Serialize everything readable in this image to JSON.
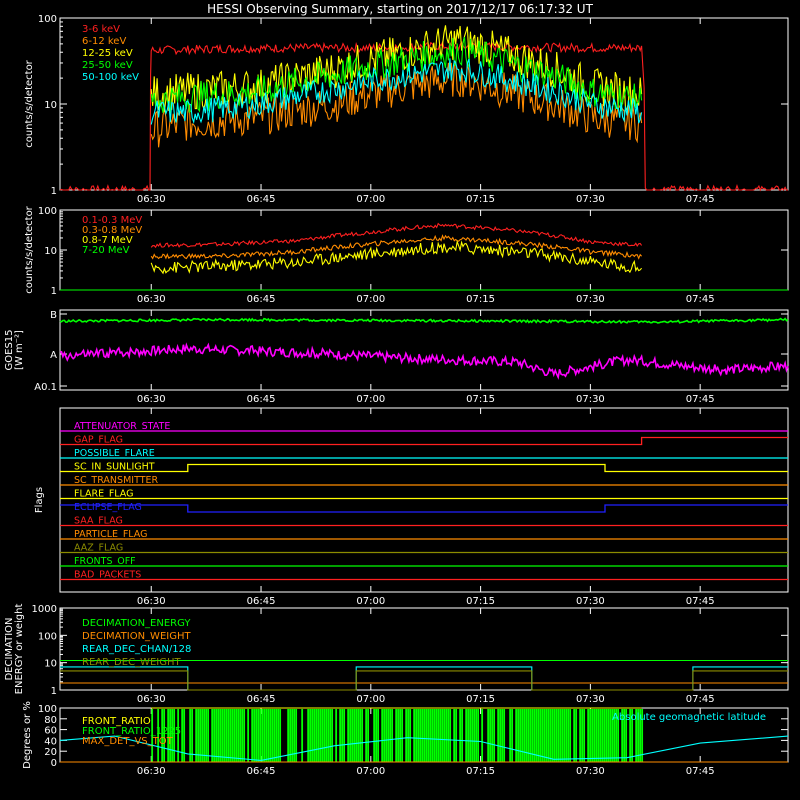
{
  "title": "HESSI Observing Summary, starting on 2017/12/17 06:17:32 UT",
  "time_axis": {
    "start": "06:17:32",
    "end": "07:57:00",
    "tick_labels": [
      "06:30",
      "06:45",
      "07:00",
      "07:15",
      "07:30",
      "07:45"
    ],
    "tick_times": [
      "06:30",
      "06:45",
      "07:00",
      "07:15",
      "07:30",
      "07:45"
    ]
  },
  "chart_data": [
    {
      "type": "line",
      "panel": "countrate-low",
      "ylabel": "counts/s/detector",
      "yscale": "log",
      "ylim": [
        1,
        100
      ],
      "ytick_labels": [
        "1",
        "10",
        "100"
      ],
      "series": [
        {
          "name": "3-6 keV",
          "color": "#ff2020",
          "x": [
            "06:17:32",
            "06:29:50",
            "06:30:00",
            "06:40",
            "06:50",
            "07:00",
            "07:10",
            "07:20",
            "07:30",
            "07:37",
            "07:37:30",
            "07:57"
          ],
          "y": [
            1,
            1,
            42,
            44,
            45,
            45,
            47,
            46,
            45,
            45,
            1,
            1
          ]
        },
        {
          "name": "6-12 keV",
          "color": "#ff8c00",
          "x": [
            "06:30:00",
            "06:35",
            "06:45",
            "06:55",
            "07:05",
            "07:12",
            "07:20",
            "07:30",
            "07:37"
          ],
          "y": [
            5,
            6,
            7,
            10,
            16,
            20,
            13,
            7,
            6
          ]
        },
        {
          "name": "12-25 keV",
          "color": "#ffff00",
          "x": [
            "06:30:00",
            "06:35",
            "06:45",
            "06:55",
            "07:05",
            "07:12",
            "07:20",
            "07:30",
            "07:37"
          ],
          "y": [
            13,
            14,
            16,
            25,
            40,
            55,
            35,
            16,
            13
          ]
        },
        {
          "name": "25-50 keV",
          "color": "#00ff00",
          "x": [
            "06:30:00",
            "06:35",
            "06:45",
            "06:55",
            "07:05",
            "07:12",
            "07:20",
            "07:30",
            "07:37"
          ],
          "y": [
            11,
            12,
            14,
            22,
            33,
            42,
            28,
            14,
            11
          ]
        },
        {
          "name": "50-100 keV",
          "color": "#00ffff",
          "x": [
            "06:30:00",
            "06:35",
            "06:45",
            "06:55",
            "07:05",
            "07:12",
            "07:20",
            "07:30",
            "07:37"
          ],
          "y": [
            8,
            8,
            10,
            15,
            22,
            26,
            18,
            10,
            8
          ]
        }
      ]
    },
    {
      "type": "line",
      "panel": "countrate-high",
      "ylabel": "counts/s/detector",
      "yscale": "log",
      "ylim": [
        1,
        100
      ],
      "ytick_labels": [
        "1",
        "10",
        "100"
      ],
      "series": [
        {
          "name": "0.1-0.3 MeV",
          "color": "#ff2020",
          "x": [
            "06:30:00",
            "06:40",
            "06:50",
            "07:00",
            "07:10",
            "07:20",
            "07:30",
            "07:37"
          ],
          "y": [
            13,
            14,
            17,
            28,
            42,
            30,
            16,
            13
          ]
        },
        {
          "name": "0.3-0.8 MeV",
          "color": "#ff8c00",
          "x": [
            "06:30:00",
            "06:40",
            "06:50",
            "07:00",
            "07:10",
            "07:20",
            "07:30",
            "07:37"
          ],
          "y": [
            7,
            7,
            9,
            14,
            20,
            15,
            9,
            7
          ]
        },
        {
          "name": "0.8-7 MeV",
          "color": "#ffff00",
          "x": [
            "06:30:00",
            "06:40",
            "06:50",
            "07:00",
            "07:10",
            "07:20",
            "07:30",
            "07:37"
          ],
          "y": [
            3.5,
            4,
            5,
            8,
            12,
            9,
            5,
            3.5
          ]
        },
        {
          "name": "7-20 MeV",
          "color": "#00ff00",
          "x": [
            "06:17:32",
            "07:57"
          ],
          "y": [
            1,
            1
          ]
        }
      ]
    },
    {
      "type": "line",
      "panel": "goes",
      "ylabel_lines": [
        "GOES15",
        "[W m⁻²]"
      ],
      "yscale": "log",
      "ytick_labels": [
        "A0.1",
        "A",
        "B"
      ],
      "series": [
        {
          "name": "",
          "color": "#00ff00",
          "x": [
            "06:17:32",
            "06:40",
            "07:00",
            "07:20",
            "07:40",
            "07:57"
          ],
          "y": [
            0.86,
            0.88,
            0.87,
            0.86,
            0.85,
            0.88
          ]
        },
        {
          "name": "",
          "color": "#ff00ff",
          "x": [
            "06:17:32",
            "06:35",
            "06:50",
            "07:05",
            "07:20",
            "07:25",
            "07:35",
            "07:48",
            "07:57"
          ],
          "y": [
            0.42,
            0.52,
            0.47,
            0.4,
            0.35,
            0.2,
            0.38,
            0.25,
            0.3
          ]
        }
      ]
    },
    {
      "type": "line",
      "panel": "flags",
      "ylabel": "Flags",
      "series": [
        {
          "name": "ATTENUATOR_STATE",
          "color": "#ff00ff",
          "x": [
            "06:17:32",
            "07:57"
          ],
          "y": [
            0,
            0
          ]
        },
        {
          "name": "GAP_FLAG",
          "color": "#ff2020",
          "x": [
            "06:17:32",
            "07:37",
            "07:37",
            "07:57"
          ],
          "y": [
            0,
            0,
            1,
            1
          ]
        },
        {
          "name": "POSSIBLE_FLARE",
          "color": "#00ffff",
          "x": [
            "06:17:32",
            "07:57"
          ],
          "y": [
            0,
            0
          ]
        },
        {
          "name": "SC_IN_SUNLIGHT",
          "color": "#ffff00",
          "x": [
            "06:17:32",
            "06:35",
            "06:35",
            "07:32",
            "07:32",
            "07:57"
          ],
          "y": [
            0,
            0,
            1,
            1,
            0,
            0
          ]
        },
        {
          "name": "SC_TRANSMITTER",
          "color": "#ff8c00",
          "x": [
            "06:17:32",
            "07:57"
          ],
          "y": [
            0,
            0
          ]
        },
        {
          "name": "FLARE_FLAG",
          "color": "#ffff00",
          "x": [
            "06:17:32",
            "07:57"
          ],
          "y": [
            0,
            0
          ]
        },
        {
          "name": "ECLIPSE_FLAG",
          "color": "#2020ff",
          "x": [
            "06:17:32",
            "06:35",
            "06:35",
            "07:32",
            "07:32",
            "07:57"
          ],
          "y": [
            1,
            1,
            0,
            0,
            1,
            1
          ]
        },
        {
          "name": "SAA_FLAG",
          "color": "#ff2020",
          "x": [
            "06:17:32",
            "07:57"
          ],
          "y": [
            0,
            0
          ]
        },
        {
          "name": "PARTICLE_FLAG",
          "color": "#ff8c00",
          "x": [
            "06:17:32",
            "07:57"
          ],
          "y": [
            0,
            0
          ]
        },
        {
          "name": "AAZ_FLAG",
          "color": "#8c8c00",
          "x": [
            "06:17:32",
            "07:57"
          ],
          "y": [
            0,
            0
          ]
        },
        {
          "name": "FRONTS_OFF",
          "color": "#00ff00",
          "x": [
            "06:17:32",
            "07:57"
          ],
          "y": [
            0,
            0
          ]
        },
        {
          "name": "BAD_PACKETS",
          "color": "#ff2020",
          "x": [
            "06:17:32",
            "07:57"
          ],
          "y": [
            0,
            0
          ]
        }
      ]
    },
    {
      "type": "line",
      "panel": "decimation",
      "ylabel_lines": [
        "DECIMATION",
        "ENERGY or weight"
      ],
      "yscale": "log",
      "ylim": [
        1,
        1000
      ],
      "ytick_labels": [
        "1",
        "10",
        "100",
        "1000"
      ],
      "series": [
        {
          "name": "DECIMATION_ENERGY",
          "color": "#00ff00",
          "x": [
            "06:17:32",
            "07:57"
          ],
          "y": [
            12,
            12
          ]
        },
        {
          "name": "DECIMATION_WEIGHT",
          "color": "#ff8c00",
          "x": [
            "06:17:32",
            "07:57"
          ],
          "y": [
            1.8,
            1.8
          ]
        },
        {
          "name": "REAR_DEC_CHAN/128",
          "color": "#00ffff",
          "x": [
            "06:17:32",
            "06:35",
            "06:35",
            "06:58",
            "06:58",
            "07:22",
            "07:22",
            "07:44",
            "07:44",
            "07:57"
          ],
          "y": [
            7,
            7,
            1,
            1,
            7,
            7,
            1,
            1,
            7,
            7
          ]
        },
        {
          "name": "REAR_DEC_WEIGHT",
          "color": "#8c8c00",
          "x": [
            "06:17:32",
            "06:35",
            "06:35",
            "06:58",
            "06:58",
            "07:22",
            "07:22",
            "07:44",
            "07:44",
            "07:57"
          ],
          "y": [
            5,
            5,
            1,
            1,
            5,
            5,
            1,
            1,
            5,
            5
          ]
        }
      ]
    },
    {
      "type": "line",
      "panel": "ratios",
      "ylabel": "Degrees or %",
      "ylim": [
        0,
        100
      ],
      "ytick_labels": [
        "0",
        "20",
        "40",
        "60",
        "80",
        "100"
      ],
      "annotation": "Absolute geomagnetic latitude",
      "series": [
        {
          "name": "FRONT_RATIO",
          "color": "#ffff00",
          "x": [
            "06:30:00",
            "07:37"
          ],
          "y": [
            100,
            100
          ]
        },
        {
          "name": "FRONT_RATIO_1225",
          "color": "#00ff00",
          "x": [
            "06:30:00",
            "07:37"
          ],
          "y": [
            100,
            100
          ]
        },
        {
          "name": "MAX_DET_VS_TOT",
          "color": "#ff8c00",
          "x": [
            "06:17:32",
            "07:57"
          ],
          "y": [
            0,
            0
          ]
        },
        {
          "name": "Absolute geomagnetic latitude",
          "color": "#00ffff",
          "x": [
            "06:17:32",
            "06:25",
            "06:35",
            "06:45",
            "06:55",
            "07:05",
            "07:15",
            "07:25",
            "07:35",
            "07:45",
            "07:57"
          ],
          "y": [
            40,
            48,
            15,
            3,
            30,
            45,
            38,
            5,
            8,
            35,
            48
          ]
        }
      ]
    }
  ]
}
